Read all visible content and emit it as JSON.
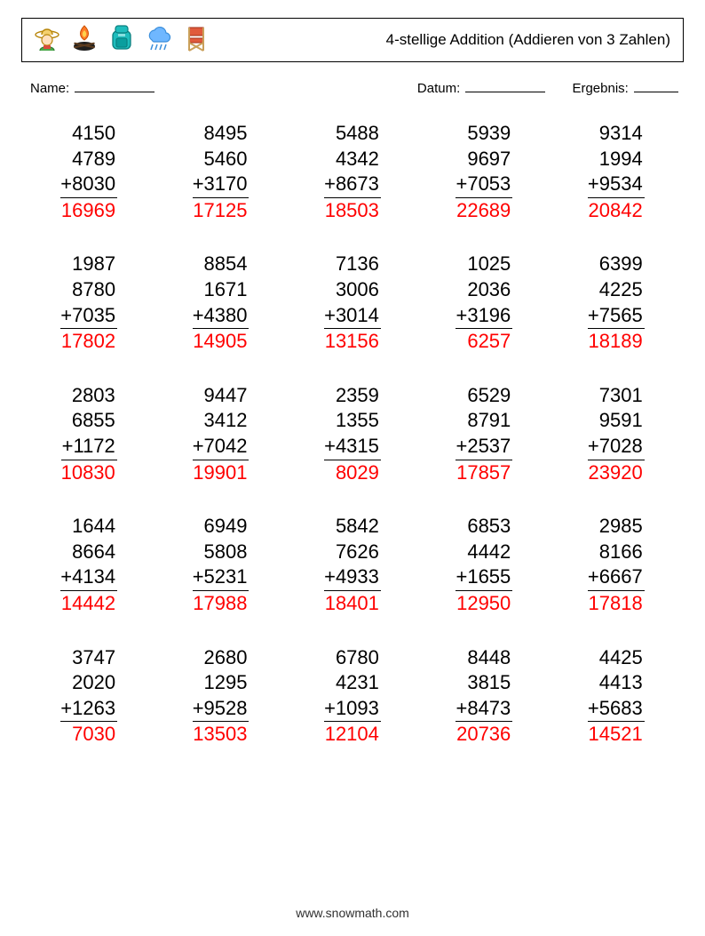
{
  "header": {
    "title": "4-stellige Addition (Addieren von 3 Zahlen)"
  },
  "info": {
    "name_label": "Name:",
    "date_label": "Datum:",
    "result_label": "Ergebnis:"
  },
  "operator": "+",
  "problem_colors": {
    "number_color": "#000000",
    "result_color": "#ff0000",
    "underline_color": "#000000"
  },
  "problems": [
    {
      "a": 4150,
      "b": 4789,
      "c": 8030,
      "sum": 16969
    },
    {
      "a": 8495,
      "b": 5460,
      "c": 3170,
      "sum": 17125
    },
    {
      "a": 5488,
      "b": 4342,
      "c": 8673,
      "sum": 18503
    },
    {
      "a": 5939,
      "b": 9697,
      "c": 7053,
      "sum": 22689
    },
    {
      "a": 9314,
      "b": 1994,
      "c": 9534,
      "sum": 20842
    },
    {
      "a": 1987,
      "b": 8780,
      "c": 7035,
      "sum": 17802
    },
    {
      "a": 8854,
      "b": 1671,
      "c": 4380,
      "sum": 14905
    },
    {
      "a": 7136,
      "b": 3006,
      "c": 3014,
      "sum": 13156
    },
    {
      "a": 1025,
      "b": 2036,
      "c": 3196,
      "sum": 6257
    },
    {
      "a": 6399,
      "b": 4225,
      "c": 7565,
      "sum": 18189
    },
    {
      "a": 2803,
      "b": 6855,
      "c": 1172,
      "sum": 10830
    },
    {
      "a": 9447,
      "b": 3412,
      "c": 7042,
      "sum": 19901
    },
    {
      "a": 2359,
      "b": 1355,
      "c": 4315,
      "sum": 8029
    },
    {
      "a": 6529,
      "b": 8791,
      "c": 2537,
      "sum": 17857
    },
    {
      "a": 7301,
      "b": 9591,
      "c": 7028,
      "sum": 23920
    },
    {
      "a": 1644,
      "b": 8664,
      "c": 4134,
      "sum": 14442
    },
    {
      "a": 6949,
      "b": 5808,
      "c": 5231,
      "sum": 17988
    },
    {
      "a": 5842,
      "b": 7626,
      "c": 4933,
      "sum": 18401
    },
    {
      "a": 6853,
      "b": 4442,
      "c": 1655,
      "sum": 12950
    },
    {
      "a": 2985,
      "b": 8166,
      "c": 6667,
      "sum": 17818
    },
    {
      "a": 3747,
      "b": 2020,
      "c": 1263,
      "sum": 7030
    },
    {
      "a": 2680,
      "b": 1295,
      "c": 9528,
      "sum": 13503
    },
    {
      "a": 6780,
      "b": 4231,
      "c": 1093,
      "sum": 12104
    },
    {
      "a": 8448,
      "b": 3815,
      "c": 8473,
      "sum": 20736
    },
    {
      "a": 4425,
      "b": 4413,
      "c": 5683,
      "sum": 14521
    }
  ],
  "footer": {
    "text": "www.snowmath.com"
  }
}
